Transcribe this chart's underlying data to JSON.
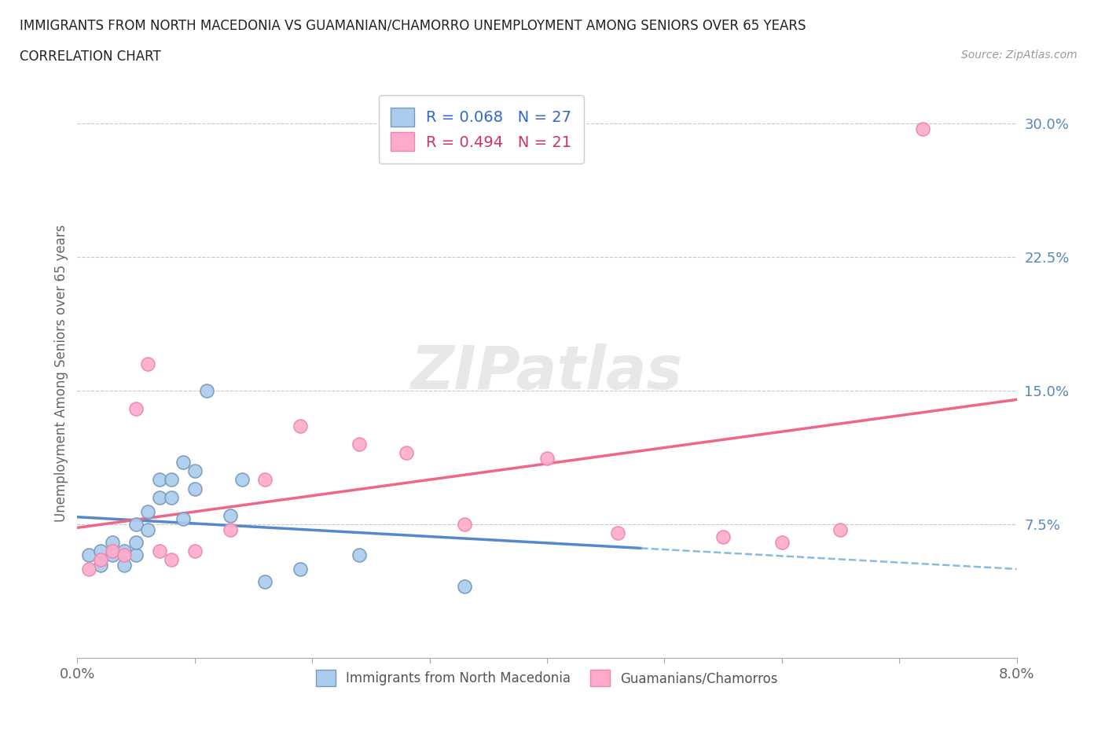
{
  "title_line1": "IMMIGRANTS FROM NORTH MACEDONIA VS GUAMANIAN/CHAMORRO UNEMPLOYMENT AMONG SENIORS OVER 65 YEARS",
  "title_line2": "CORRELATION CHART",
  "source_text": "Source: ZipAtlas.com",
  "ylabel": "Unemployment Among Seniors over 65 years",
  "xlim": [
    0.0,
    0.08
  ],
  "ylim": [
    0.0,
    0.32
  ],
  "xticks": [
    0.0,
    0.01,
    0.02,
    0.03,
    0.04,
    0.05,
    0.06,
    0.07,
    0.08
  ],
  "ytick_positions": [
    0.075,
    0.15,
    0.225,
    0.3
  ],
  "ytick_labels": [
    "7.5%",
    "15.0%",
    "22.5%",
    "30.0%"
  ],
  "blue_scatter_x": [
    0.001,
    0.002,
    0.002,
    0.003,
    0.003,
    0.004,
    0.004,
    0.005,
    0.005,
    0.005,
    0.006,
    0.006,
    0.007,
    0.007,
    0.008,
    0.008,
    0.009,
    0.009,
    0.01,
    0.01,
    0.011,
    0.013,
    0.014,
    0.016,
    0.019,
    0.024,
    0.033
  ],
  "blue_scatter_y": [
    0.058,
    0.052,
    0.06,
    0.058,
    0.065,
    0.052,
    0.06,
    0.058,
    0.065,
    0.075,
    0.072,
    0.082,
    0.09,
    0.1,
    0.09,
    0.1,
    0.11,
    0.078,
    0.095,
    0.105,
    0.15,
    0.08,
    0.1,
    0.043,
    0.05,
    0.058,
    0.04
  ],
  "pink_scatter_x": [
    0.001,
    0.002,
    0.003,
    0.004,
    0.005,
    0.006,
    0.007,
    0.008,
    0.01,
    0.013,
    0.016,
    0.019,
    0.024,
    0.028,
    0.033,
    0.04,
    0.046,
    0.055,
    0.06,
    0.065,
    0.072
  ],
  "pink_scatter_y": [
    0.05,
    0.055,
    0.06,
    0.058,
    0.14,
    0.165,
    0.06,
    0.055,
    0.06,
    0.072,
    0.1,
    0.13,
    0.12,
    0.115,
    0.075,
    0.112,
    0.07,
    0.068,
    0.065,
    0.072,
    0.297
  ],
  "blue_R": 0.068,
  "blue_N": 27,
  "pink_R": 0.494,
  "pink_N": 21,
  "blue_line_solid_color": "#5588CC",
  "blue_line_dashed_color": "#88BBDD",
  "pink_line_color": "#EE6688",
  "blue_scatter_color": "#AACCEE",
  "pink_scatter_color": "#FFAACC",
  "blue_scatter_edge": "#7799BB",
  "pink_scatter_edge": "#EE88AA",
  "grid_color": "#C8C8C8",
  "background_color": "#FFFFFF",
  "watermark": "ZIPatlas",
  "legend_label_blue": "Immigrants from North Macedonia",
  "legend_label_pink": "Guamanians/Chamorros",
  "blue_line_start_x": 0.0,
  "blue_line_solid_end_x": 0.048,
  "blue_line_dashed_end_x": 0.08,
  "pink_line_start_x": 0.0,
  "pink_line_end_x": 0.08
}
